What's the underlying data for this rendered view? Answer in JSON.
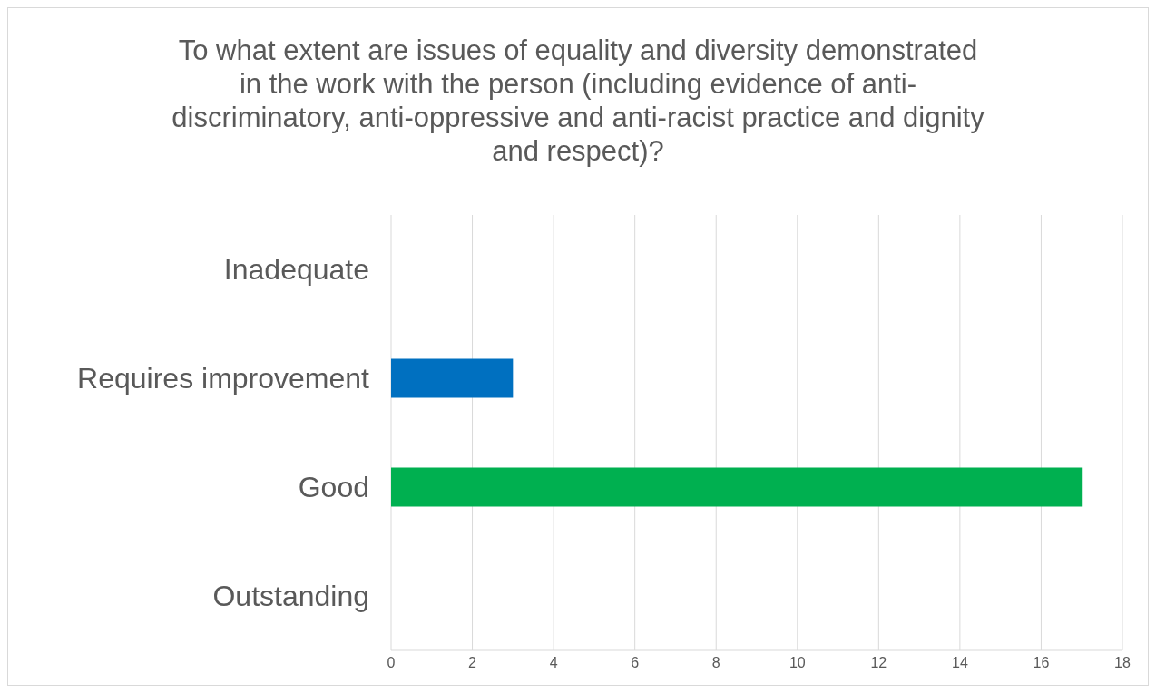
{
  "chart_data": {
    "type": "bar",
    "orientation": "horizontal",
    "title": "To what extent are issues of equality and diversity demonstrated in the work with the person (including evidence of anti-discriminatory, anti-oppressive and anti-racist practice and dignity and respect)?",
    "categories": [
      "Inadequate",
      "Requires improvement",
      "Good",
      "Outstanding"
    ],
    "values": [
      0,
      3,
      17,
      0
    ],
    "colors": [
      "#ff0000",
      "#0070c0",
      "#00b050",
      "#7030a0"
    ],
    "xlim": [
      0,
      18
    ],
    "xticks": [
      0,
      2,
      4,
      6,
      8,
      10,
      12,
      14,
      16,
      18
    ],
    "grid": "x"
  }
}
